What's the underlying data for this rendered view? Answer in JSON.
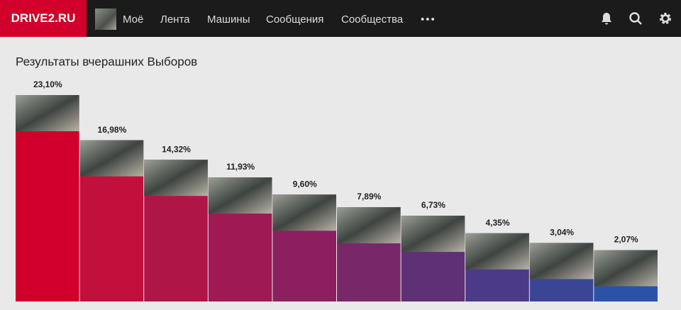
{
  "header": {
    "logo": "DRIVE2.RU",
    "menu": [
      "Моё",
      "Лента",
      "Машины",
      "Сообщения",
      "Сообщества",
      "•••"
    ]
  },
  "chart_data": {
    "type": "bar",
    "title": "Результаты вчерашних Выборов",
    "categories": [
      null,
      null,
      null,
      null,
      null,
      null,
      null,
      null,
      null,
      null
    ],
    "values": [
      23.1,
      16.98,
      14.32,
      11.93,
      9.6,
      7.89,
      6.73,
      4.35,
      3.04,
      2.07
    ],
    "value_labels": [
      "23,10%",
      "16,98%",
      "14,32%",
      "11,93%",
      "9,60%",
      "7,89%",
      "6,73%",
      "4,35%",
      "3,04%",
      "2,07%"
    ],
    "colors": [
      "#d0002a",
      "#c2103c",
      "#b01548",
      "#9f1a54",
      "#8c205e",
      "#782868",
      "#603076",
      "#4b3a88",
      "#3a4596",
      "#2a52a8"
    ]
  }
}
